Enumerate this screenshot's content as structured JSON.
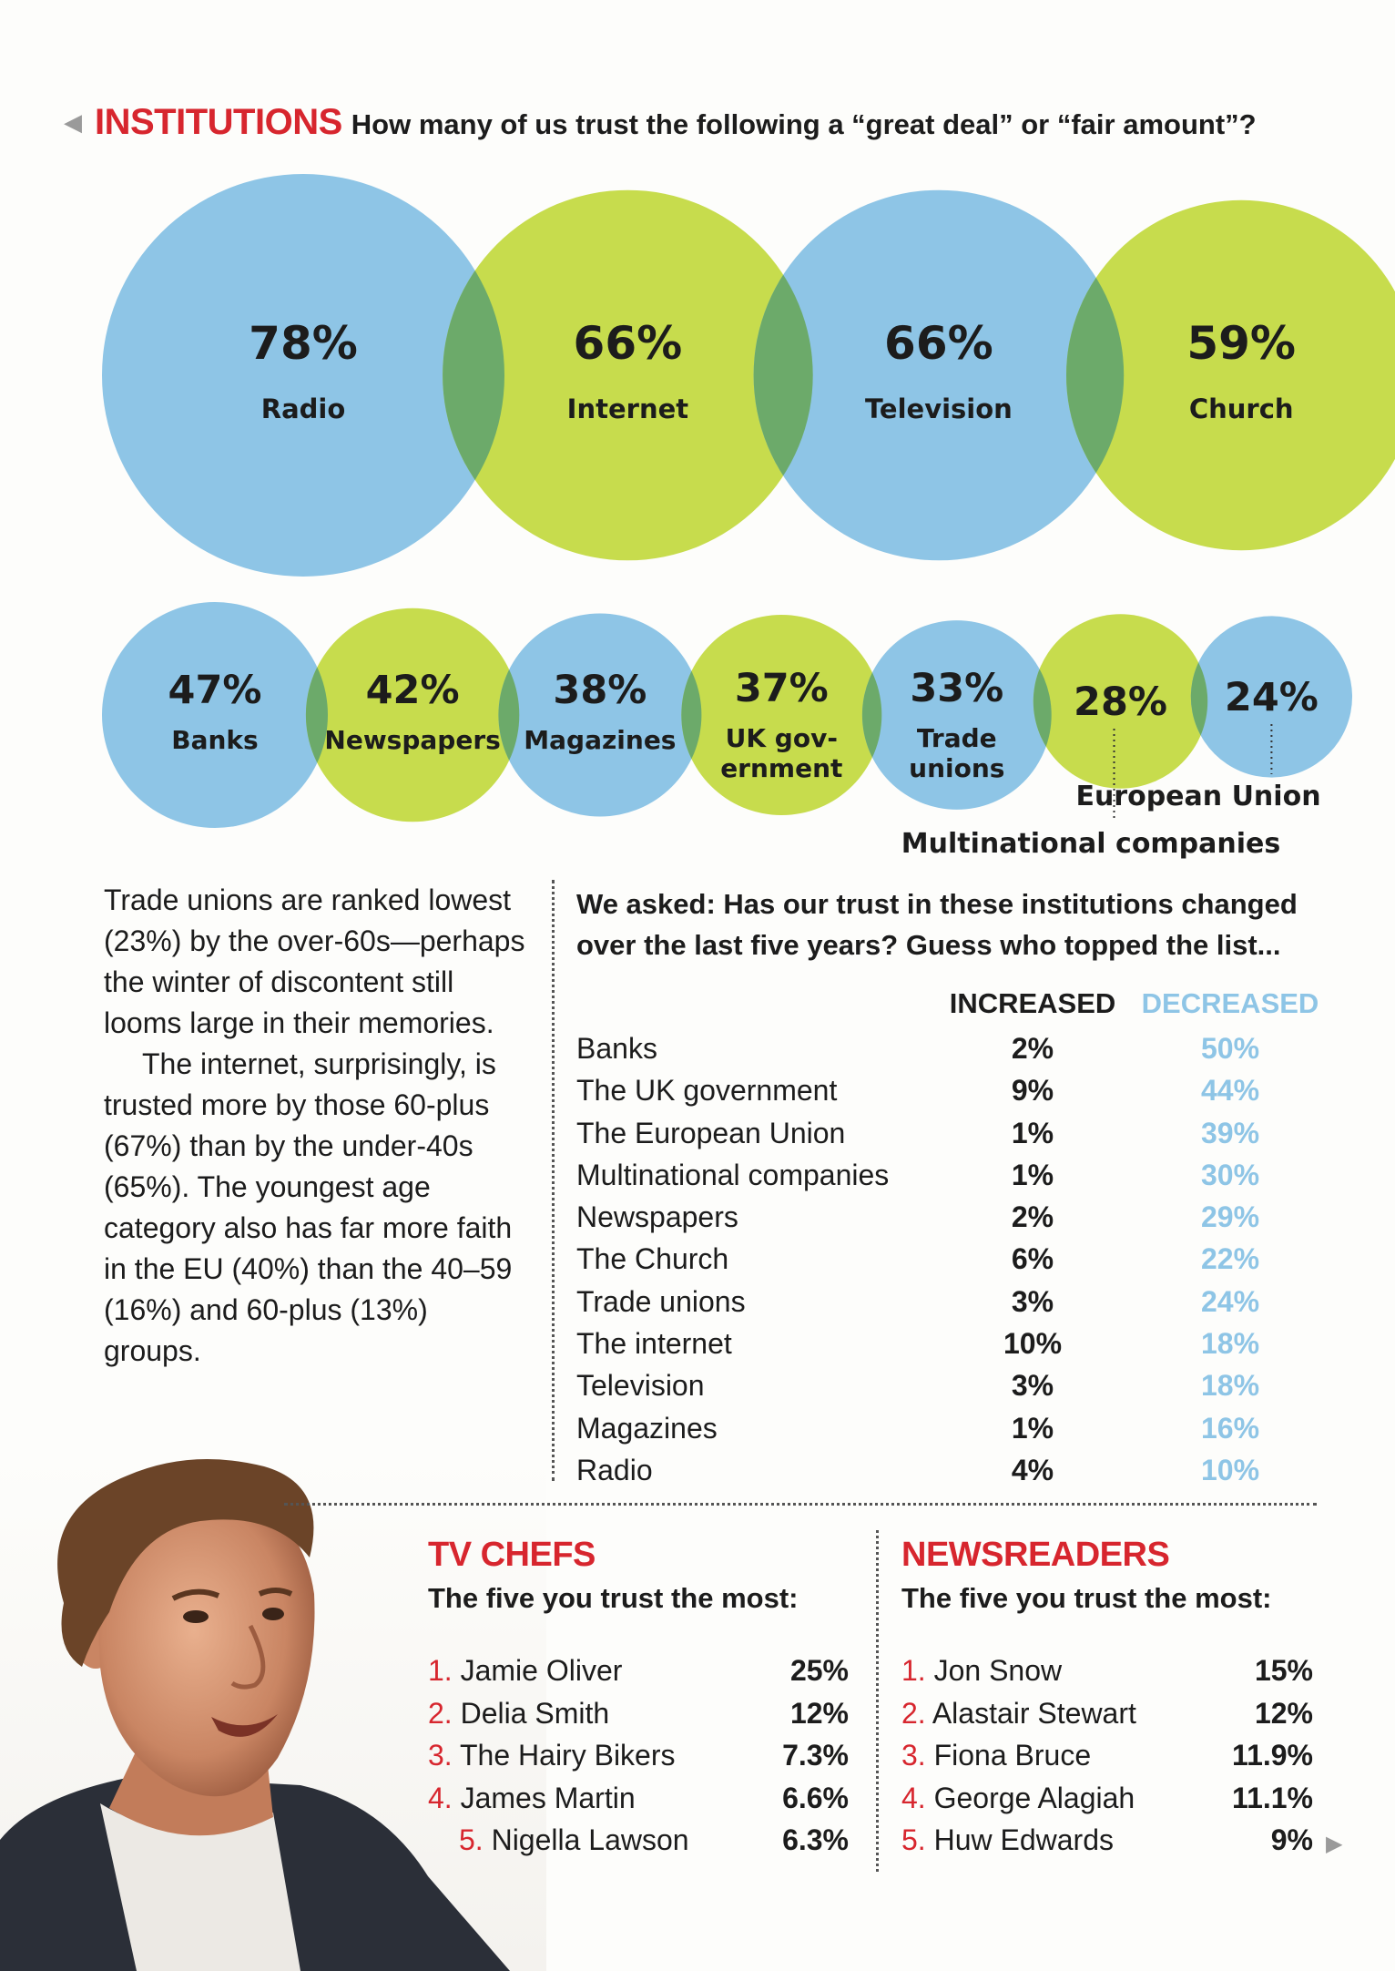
{
  "header": {
    "section": "INSTITUTIONS",
    "question": "How many of us trust the following a “great deal” or “fair amount”?"
  },
  "colors": {
    "blue": "#8ec5e6",
    "green": "#c7dc4d",
    "overlap": "#6caa6a",
    "red": "#d7262e"
  },
  "chart_data": [
    {
      "type": "bubble",
      "title": "How many of us trust the following a “great deal” or “fair amount”?",
      "unit": "%",
      "categories": [
        "Radio",
        "Internet",
        "Television",
        "Church",
        "Banks",
        "Newspapers",
        "Magazines",
        "UK gov-ernment",
        "Trade unions",
        "Multinational companies",
        "European Union"
      ],
      "display_labels": [
        "Radio",
        "Internet",
        "Television",
        "Church",
        "Banks",
        "Newspapers",
        "Magazines",
        "UK gov- ernment",
        "Trade unions",
        "Multinational companies",
        "European Union"
      ],
      "values": [
        78,
        66,
        66,
        59,
        47,
        42,
        38,
        37,
        33,
        28,
        24
      ]
    },
    {
      "type": "table",
      "question": "We asked: Has our trust in these institutions changed over the last five years? Guess who topped the list...",
      "columns": [
        "INCREASED",
        "DECREASED"
      ],
      "rows": [
        {
          "name": "Banks",
          "increased": "2%",
          "decreased": "50%"
        },
        {
          "name": "The UK government",
          "increased": "9%",
          "decreased": "44%"
        },
        {
          "name": "The European Union",
          "increased": "1%",
          "decreased": "39%"
        },
        {
          "name": "Multinational companies",
          "increased": "1%",
          "decreased": "30%"
        },
        {
          "name": "Newspapers",
          "increased": "2%",
          "decreased": "29%"
        },
        {
          "name": "The Church",
          "increased": "6%",
          "decreased": "22%"
        },
        {
          "name": "Trade unions",
          "increased": "3%",
          "decreased": "24%"
        },
        {
          "name": "The internet",
          "increased": "10%",
          "decreased": "18%"
        },
        {
          "name": "Television",
          "increased": "3%",
          "decreased": "18%"
        },
        {
          "name": "Magazines",
          "increased": "1%",
          "decreased": "16%"
        },
        {
          "name": "Radio",
          "increased": "4%",
          "decreased": "10%"
        }
      ]
    }
  ],
  "left_text": {
    "p1": "Trade unions are ranked lowest (23%) by the over-60s—perhaps the winter of discontent still looms large in their memories.",
    "p2": "The internet, surprisingly, is trusted more by those 60-plus (67%) than by the under-40s (65%). The youngest age category also has far more faith in the EU (40%) than the 40–59 (16%) and 60-plus (13%) groups."
  },
  "tv_chefs": {
    "title": "TV CHEFS",
    "subtitle": "The five you trust the most:",
    "items": [
      {
        "rank": "1.",
        "name": "Jamie Oliver",
        "pct": "25%"
      },
      {
        "rank": "2.",
        "name": "Delia Smith",
        "pct": "12%"
      },
      {
        "rank": "3.",
        "name": "The Hairy Bikers",
        "pct": "7.3%"
      },
      {
        "rank": "4.",
        "name": "James Martin",
        "pct": "6.6%"
      },
      {
        "rank": "5.",
        "name": "Nigella Lawson",
        "pct": "6.3%"
      }
    ]
  },
  "newsreaders": {
    "title": "NEWSREADERS",
    "subtitle": "The five you trust the most:",
    "items": [
      {
        "rank": "1.",
        "name": "Jon Snow",
        "pct": "15%"
      },
      {
        "rank": "2.",
        "name": "Alastair Stewart",
        "pct": "12%"
      },
      {
        "rank": "3.",
        "name": "Fiona Bruce",
        "pct": "11.9%"
      },
      {
        "rank": "4.",
        "name": "George Alagiah",
        "pct": "11.1%"
      },
      {
        "rank": "5.",
        "name": "Huw Edwards",
        "pct": "9%"
      }
    ]
  }
}
